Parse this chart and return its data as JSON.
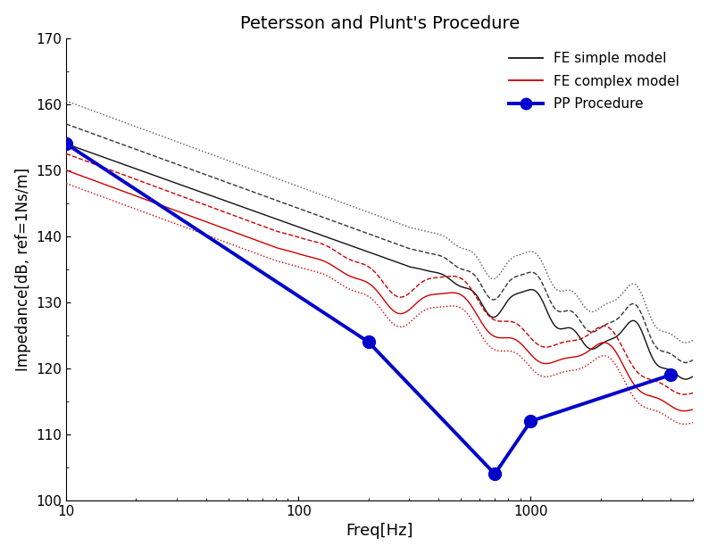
{
  "title": "Petersson and Plunt's Procedure",
  "xlabel": "Freq[Hz]",
  "ylabel": "Impedance[dB, ref=1Ns/m]",
  "xlim": [
    10,
    5000
  ],
  "ylim": [
    100,
    170
  ],
  "yticks": [
    100,
    110,
    120,
    130,
    140,
    150,
    160,
    170
  ],
  "legend": [
    "FE simple model",
    "FE complex model",
    "PP Procedure"
  ],
  "pp_freq": [
    10,
    200,
    700,
    1000,
    4000
  ],
  "pp_impedance": [
    154,
    124,
    104,
    112,
    119
  ],
  "fe_simple_color": "#111111",
  "fe_complex_color": "#cc0000",
  "pp_color": "#0000cc",
  "fe_s_v10": [
    154.0,
    157.0,
    160.5
  ],
  "fe_s_v5000": [
    120.0,
    122.5,
    125.5
  ],
  "fe_s_styles": [
    "solid",
    "dashed",
    "dotted"
  ],
  "fe_c_v10": [
    150.0,
    152.5,
    148.0
  ],
  "fe_c_v5000": [
    115.0,
    117.5,
    113.0
  ],
  "fe_c_styles": [
    "solid",
    "dashed",
    "dotted"
  ],
  "noise_start_s": 300,
  "noise_start_c": 80
}
